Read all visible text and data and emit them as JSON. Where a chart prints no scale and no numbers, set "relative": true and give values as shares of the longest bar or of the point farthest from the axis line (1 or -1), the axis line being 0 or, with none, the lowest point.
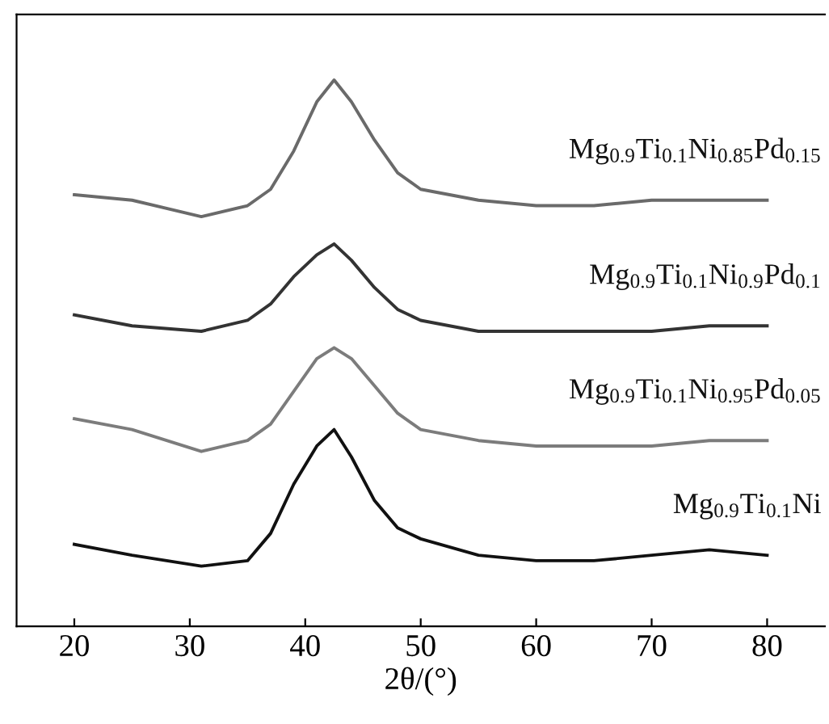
{
  "chart_data": {
    "type": "line",
    "relative": true,
    "xlabel": "2θ/(°)",
    "xlim": [
      15,
      85
    ],
    "xticks": [
      20,
      30,
      40,
      50,
      60,
      70,
      80
    ],
    "grid": false,
    "legend": false,
    "marker": "none",
    "line_style": "solid",
    "x": [
      20,
      25,
      31,
      35,
      37,
      39,
      41,
      42.5,
      44,
      46,
      48,
      50,
      55,
      60,
      65,
      70,
      75,
      80
    ],
    "series": [
      {
        "name": "Mg$_{0.9}$Ti$_{0.1}$Ni$_{0.85}$Pd$_{0.15}$",
        "color": "#6a6a6a",
        "values": [
          0.79,
          0.78,
          0.75,
          0.77,
          0.8,
          0.87,
          0.96,
          1.0,
          0.96,
          0.89,
          0.83,
          0.8,
          0.78,
          0.77,
          0.77,
          0.78,
          0.78,
          0.78
        ]
      },
      {
        "name": "Mg$_{0.9}$Ti$_{0.1}$Ni$_{0.9}$Pd$_{0.1}$",
        "color": "#333333",
        "values": [
          0.57,
          0.55,
          0.54,
          0.56,
          0.59,
          0.64,
          0.68,
          0.7,
          0.67,
          0.62,
          0.58,
          0.56,
          0.54,
          0.54,
          0.54,
          0.54,
          0.55,
          0.55
        ]
      },
      {
        "name": "Mg$_{0.9}$Ti$_{0.1}$Ni$_{0.95}$Pd$_{0.05}$",
        "color": "#7c7c7c",
        "values": [
          0.38,
          0.36,
          0.32,
          0.34,
          0.37,
          0.43,
          0.49,
          0.51,
          0.49,
          0.44,
          0.39,
          0.36,
          0.34,
          0.33,
          0.33,
          0.33,
          0.34,
          0.34
        ]
      },
      {
        "name": "Mg$_{0.9}$Ti$_{0.1}$Ni",
        "color": "#111111",
        "values": [
          0.15,
          0.13,
          0.11,
          0.12,
          0.17,
          0.26,
          0.33,
          0.36,
          0.31,
          0.23,
          0.18,
          0.16,
          0.13,
          0.12,
          0.12,
          0.13,
          0.14,
          0.13
        ]
      }
    ]
  }
}
